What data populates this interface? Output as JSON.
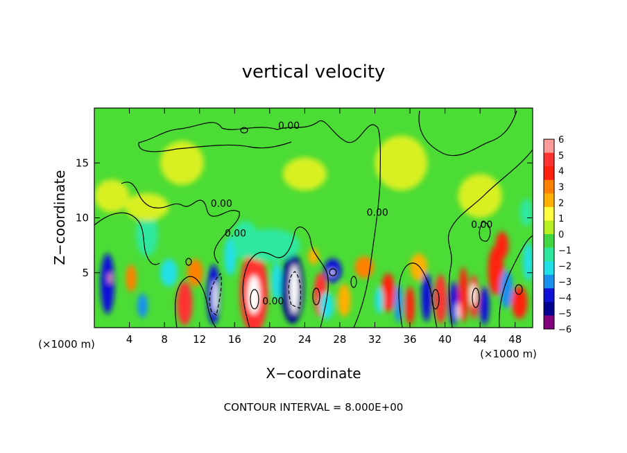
{
  "chart_data": {
    "type": "heatmap",
    "title": "vertical velocity",
    "xlabel": "X−coordinate",
    "ylabel": "Z−coordinate",
    "x_unit_label": "(×1000 m)",
    "footer": "CONTOUR INTERVAL = 8.000E+00",
    "xlim": [
      0,
      50
    ],
    "ylim": [
      0,
      20
    ],
    "x_ticks": [
      4,
      8,
      12,
      16,
      20,
      24,
      28,
      32,
      36,
      40,
      44,
      48
    ],
    "x_tick_labels": [
      "4",
      "8",
      "12",
      "16",
      "20",
      "24",
      "28",
      "32",
      "36",
      "40",
      "44",
      "48"
    ],
    "y_ticks": [
      5,
      10,
      15
    ],
    "y_tick_labels": [
      "5",
      "10",
      "15"
    ],
    "colorbar": {
      "ticks": [
        6,
        5,
        4,
        3,
        2,
        1,
        0,
        -1,
        -2,
        -3,
        -4,
        -5,
        -6
      ],
      "tick_labels": [
        "6",
        "5",
        "4",
        "3",
        "2",
        "1",
        "0",
        "−1",
        "−2",
        "−3",
        "−4",
        "−5",
        "−6"
      ],
      "colors": [
        "#ff9a9a",
        "#ff3030",
        "#ff2010",
        "#ff8000",
        "#ffb000",
        "#ffff40",
        "#b8f020",
        "#40d840",
        "#2ee8a0",
        "#20e0e8",
        "#1890f0",
        "#1010d8",
        "#000090",
        "#800080"
      ]
    },
    "contour_labels": [
      {
        "text": "0.00",
        "x": 22.2,
        "y": 18.1
      },
      {
        "text": "0.00",
        "x": 14.5,
        "y": 11.0
      },
      {
        "text": "0.00",
        "x": 16.1,
        "y": 8.3
      },
      {
        "text": "0.00",
        "x": 32.3,
        "y": 10.2
      },
      {
        "text": "0.00",
        "x": 44.2,
        "y": 9.1
      },
      {
        "text": "0.00",
        "x": 20.4,
        "y": 2.1
      }
    ],
    "cells": [
      {
        "x": 1.5,
        "z": 4.0,
        "w": 1.6,
        "h": 5.5,
        "v": -4.5
      },
      {
        "x": 1.8,
        "z": 4.5,
        "w": 0.4,
        "h": 1.0,
        "v": 6.5
      },
      {
        "x": 4.2,
        "z": 4.5,
        "w": 1.2,
        "h": 2.5,
        "v": 3.0
      },
      {
        "x": 5.5,
        "z": 2.0,
        "w": 1.2,
        "h": 2.2,
        "v": -3.0
      },
      {
        "x": 6.0,
        "z": 8.5,
        "w": 2.5,
        "h": 4.0,
        "v": -1.0
      },
      {
        "x": 2.0,
        "z": 12.0,
        "w": 4.0,
        "h": 3.0,
        "v": 1.3
      },
      {
        "x": 8.5,
        "z": 5.0,
        "w": 2.0,
        "h": 2.5,
        "v": -2.0
      },
      {
        "x": 10.3,
        "z": 2.2,
        "w": 1.8,
        "h": 4.0,
        "v": 4.5
      },
      {
        "x": 11.5,
        "z": 5.0,
        "w": 1.8,
        "h": 2.5,
        "v": 2.5
      },
      {
        "x": 13.6,
        "z": 3.0,
        "w": 1.5,
        "h": 5.5,
        "v": -4.5
      },
      {
        "x": 13.8,
        "z": 2.8,
        "w": 0.5,
        "h": 3.0,
        "v": -7.0
      },
      {
        "x": 15.5,
        "z": 6.5,
        "w": 1.4,
        "h": 3.5,
        "v": -2.0
      },
      {
        "x": 17.2,
        "z": 8.0,
        "w": 3.0,
        "h": 3.5,
        "v": -1.5
      },
      {
        "x": 18.2,
        "z": 3.2,
        "w": 3.2,
        "h": 7.5,
        "v": 5.3
      },
      {
        "x": 18.2,
        "z": 3.0,
        "w": 1.4,
        "h": 3.5,
        "v": 7.5
      },
      {
        "x": 20.8,
        "z": 4.2,
        "w": 1.2,
        "h": 3.5,
        "v": -2.5
      },
      {
        "x": 22.6,
        "z": 3.6,
        "w": 2.6,
        "h": 6.5,
        "v": -4.8
      },
      {
        "x": 22.8,
        "z": 3.5,
        "w": 1.0,
        "h": 4.5,
        "v": -7.0
      },
      {
        "x": 25.8,
        "z": 3.0,
        "w": 1.5,
        "h": 4.0,
        "v": 5.0
      },
      {
        "x": 25.0,
        "z": 6.5,
        "w": 1.2,
        "h": 1.5,
        "v": 2.0
      },
      {
        "x": 27.2,
        "z": 5.2,
        "w": 2.0,
        "h": 2.2,
        "v": -4.0
      },
      {
        "x": 27.1,
        "z": 5.0,
        "w": 0.5,
        "h": 0.5,
        "v": 7.0
      },
      {
        "x": 26.5,
        "z": 2.0,
        "w": 1.6,
        "h": 2.5,
        "v": -2.0
      },
      {
        "x": 28.5,
        "z": 2.5,
        "w": 1.5,
        "h": 3.0,
        "v": 1.5
      },
      {
        "x": 30.8,
        "z": 5.5,
        "w": 2.2,
        "h": 2.0,
        "v": 2.5
      },
      {
        "x": 33.5,
        "z": 3.2,
        "w": 1.6,
        "h": 3.5,
        "v": 3.5
      },
      {
        "x": 32.5,
        "z": 2.5,
        "w": 1.0,
        "h": 2.5,
        "v": -2.0
      },
      {
        "x": 34.7,
        "z": 2.2,
        "w": 1.0,
        "h": 3.5,
        "v": -3.5
      },
      {
        "x": 36.0,
        "z": 2.0,
        "w": 1.1,
        "h": 3.5,
        "v": 4.0
      },
      {
        "x": 37.0,
        "z": 5.5,
        "w": 2.0,
        "h": 2.5,
        "v": 2.0
      },
      {
        "x": 37.9,
        "z": 2.8,
        "w": 1.2,
        "h": 4.5,
        "v": -4.0
      },
      {
        "x": 39.5,
        "z": 2.6,
        "w": 1.4,
        "h": 4.5,
        "v": 4.5
      },
      {
        "x": 41.0,
        "z": 2.2,
        "w": 1.1,
        "h": 4.0,
        "v": -4.2
      },
      {
        "x": 41.5,
        "z": 1.5,
        "w": 0.4,
        "h": 1.5,
        "v": -7.0
      },
      {
        "x": 42.1,
        "z": 3.0,
        "w": 1.1,
        "h": 5.0,
        "v": 3.8
      },
      {
        "x": 43.3,
        "z": 2.8,
        "w": 1.1,
        "h": 4.0,
        "v": 5.0
      },
      {
        "x": 43.2,
        "z": 3.0,
        "w": 0.6,
        "h": 2.0,
        "v": 7.0
      },
      {
        "x": 44.5,
        "z": 2.0,
        "w": 1.1,
        "h": 3.5,
        "v": -4.0
      },
      {
        "x": 45.8,
        "z": 5.2,
        "w": 1.8,
        "h": 4.5,
        "v": 4.0
      },
      {
        "x": 46.5,
        "z": 7.5,
        "w": 1.5,
        "h": 2.5,
        "v": 3.5
      },
      {
        "x": 47.0,
        "z": 3.5,
        "w": 1.5,
        "h": 3.5,
        "v": -3.0
      },
      {
        "x": 48.5,
        "z": 2.3,
        "w": 1.8,
        "h": 3.0,
        "v": 4.0
      },
      {
        "x": 49.5,
        "z": 6.0,
        "w": 1.2,
        "h": 3.5,
        "v": -2.0
      },
      {
        "x": 49.3,
        "z": 10.5,
        "w": 1.5,
        "h": 2.5,
        "v": -1.0
      },
      {
        "x": 35.0,
        "z": 15.0,
        "w": 6.0,
        "h": 5.0,
        "v": 1.3
      },
      {
        "x": 44.0,
        "z": 12.0,
        "w": 5.0,
        "h": 4.0,
        "v": 1.2
      },
      {
        "x": 10.0,
        "z": 15.0,
        "w": 5.0,
        "h": 4.0,
        "v": 0.7
      },
      {
        "x": 24.0,
        "z": 14.0,
        "w": 5.0,
        "h": 3.0,
        "v": 0.6
      },
      {
        "x": 20.0,
        "z": 7.5,
        "w": 7.0,
        "h": 3.0,
        "v": -0.8
      },
      {
        "x": 6.0,
        "z": 11.0,
        "w": 5.0,
        "h": 2.5,
        "v": 1.4
      }
    ]
  }
}
